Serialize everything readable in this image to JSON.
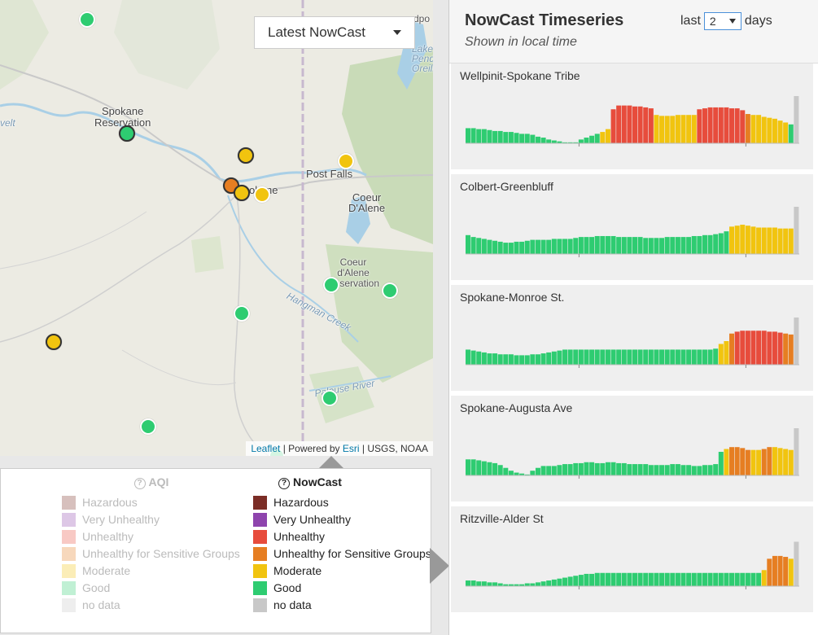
{
  "dropdown": {
    "label": "Latest NowCast"
  },
  "attribution": {
    "leaflet": "Leaflet",
    "powered": " | Powered by ",
    "esri": "Esri",
    "rest": " | USGS, NOAA"
  },
  "map_labels": [
    {
      "text": "Spokane\nReservation"
    },
    {
      "text": "Post Falls"
    },
    {
      "text": "Coeur\nD'Alene"
    },
    {
      "text": "Coeur\nd'Alene\nReservation"
    },
    {
      "text": "Hangman Creek"
    },
    {
      "text": "Palouse River"
    },
    {
      "text": "velt"
    },
    {
      "text": "Lake\nPend\nOreille"
    },
    {
      "text": "dpo"
    },
    {
      "text": "okane"
    }
  ],
  "colors": {
    "good": "#2ecc71",
    "moderate": "#f1c40f",
    "usg": "#e67e22",
    "unhealthy": "#e74c3c",
    "very_unhealthy": "#8e44ad",
    "hazardous": "#7b2d26",
    "nodata": "#c8c8c8"
  },
  "markers": [
    {
      "cat": "good"
    },
    {
      "cat": "good"
    },
    {
      "cat": "moderate"
    },
    {
      "cat": "moderate"
    },
    {
      "cat": "usg"
    },
    {
      "cat": "moderate"
    },
    {
      "cat": "moderate"
    },
    {
      "cat": "good"
    },
    {
      "cat": "good"
    },
    {
      "cat": "good"
    },
    {
      "cat": "moderate"
    },
    {
      "cat": "good"
    },
    {
      "cat": "good"
    },
    {
      "cat": "good"
    }
  ],
  "legend": {
    "aqi_title": "AQI",
    "nowcast_title": "NowCast",
    "items": [
      {
        "label": "Hazardous",
        "color": "#7b2d26"
      },
      {
        "label": "Very Unhealthy",
        "color": "#8e44ad"
      },
      {
        "label": "Unhealthy",
        "color": "#e74c3c"
      },
      {
        "label": "Unhealthy for Sensitive Groups",
        "color": "#e67e22"
      },
      {
        "label": "Moderate",
        "color": "#f1c40f"
      },
      {
        "label": "Good",
        "color": "#2ecc71"
      },
      {
        "label": "no data",
        "color": "#c8c8c8"
      }
    ]
  },
  "panel": {
    "title": "NowCast Timeseries",
    "subtitle": "Shown in local time",
    "days_prefix": "last",
    "days_value": "2",
    "days_suffix": "days"
  },
  "sites": [
    {
      "name": "Wellpinit-Spokane Tribe"
    },
    {
      "name": "Colbert-Greenbluff"
    },
    {
      "name": "Spokane-Monroe St."
    },
    {
      "name": "Spokane-Augusta Ave"
    },
    {
      "name": "Ritzville-Alder St"
    }
  ],
  "chart_data": [
    {
      "type": "bar",
      "title": "Wellpinit-Spokane Tribe",
      "values": [
        16,
        16,
        15,
        15,
        14,
        13,
        13,
        12,
        12,
        11,
        10,
        10,
        9,
        7,
        6,
        4,
        3,
        2,
        1,
        1,
        1,
        4,
        6,
        8,
        10,
        12,
        15,
        36,
        40,
        40,
        40,
        39,
        39,
        38,
        37,
        30,
        29,
        29,
        29,
        30,
        30,
        30,
        30,
        36,
        37,
        38,
        38,
        38,
        38,
        37,
        37,
        35,
        31,
        30,
        30,
        28,
        27,
        26,
        24,
        22,
        20,
        50
      ],
      "cats": "gggggggggggggggggggggggggmmuuuuuuuummmmmmmmuuuuuuuuuummmmmmmgn"
    },
    {
      "type": "bar",
      "title": "Colbert-Greenbluff",
      "values": [
        20,
        18,
        17,
        16,
        15,
        14,
        13,
        12,
        12,
        13,
        13,
        14,
        15,
        15,
        15,
        15,
        16,
        16,
        16,
        16,
        17,
        18,
        18,
        18,
        19,
        19,
        19,
        19,
        18,
        18,
        18,
        18,
        18,
        17,
        17,
        17,
        17,
        18,
        18,
        18,
        18,
        18,
        19,
        19,
        20,
        20,
        21,
        22,
        24,
        29,
        30,
        31,
        30,
        29,
        28,
        28,
        28,
        28,
        27,
        27,
        27,
        50
      ],
      "cats": "gggggggggggggggggggggggggggggggggggggggggggggggggmmmmmmmmmmmmn"
    },
    {
      "type": "bar",
      "title": "Spokane-Monroe St.",
      "values": [
        16,
        15,
        14,
        13,
        12,
        12,
        11,
        11,
        11,
        10,
        10,
        10,
        11,
        11,
        12,
        13,
        14,
        15,
        16,
        16,
        16,
        16,
        16,
        16,
        16,
        16,
        16,
        16,
        16,
        16,
        16,
        16,
        16,
        16,
        16,
        16,
        16,
        16,
        16,
        16,
        16,
        16,
        16,
        16,
        16,
        16,
        17,
        22,
        25,
        33,
        35,
        36,
        36,
        36,
        36,
        36,
        35,
        35,
        34,
        33,
        32,
        50
      ],
      "cats": "gggggggggggggggggggggggggggggggggggggggggggggggmmuuuuuuuuuuuun"
    },
    {
      "type": "bar",
      "title": "Spokane-Augusta Ave",
      "values": [
        17,
        17,
        16,
        15,
        14,
        13,
        11,
        8,
        5,
        3,
        2,
        1,
        5,
        8,
        10,
        10,
        10,
        11,
        12,
        12,
        13,
        13,
        14,
        14,
        13,
        13,
        14,
        14,
        13,
        13,
        12,
        12,
        12,
        12,
        11,
        11,
        11,
        11,
        12,
        12,
        11,
        11,
        10,
        10,
        11,
        11,
        12,
        25,
        28,
        30,
        30,
        29,
        27,
        27,
        27,
        28,
        30,
        30,
        29,
        28,
        27,
        50
      ],
      "cats": "ggggggggggggggggggggggggggggggggggggggggggggggggmuuuummuummmmn"
    },
    {
      "type": "bar",
      "title": "Ritzville-Alder St",
      "values": [
        6,
        6,
        5,
        5,
        4,
        4,
        3,
        2,
        2,
        2,
        2,
        3,
        3,
        4,
        5,
        6,
        7,
        8,
        9,
        10,
        11,
        12,
        13,
        13,
        14,
        14,
        14,
        14,
        14,
        14,
        14,
        14,
        14,
        14,
        14,
        14,
        14,
        14,
        14,
        14,
        14,
        14,
        14,
        14,
        14,
        14,
        14,
        14,
        14,
        14,
        14,
        14,
        14,
        14,
        14,
        17,
        29,
        32,
        32,
        31,
        29,
        47
      ],
      "cats": "gggggggggggggggggggggggggggggggggggggggggggggggggggggggmuuuumn"
    }
  ]
}
